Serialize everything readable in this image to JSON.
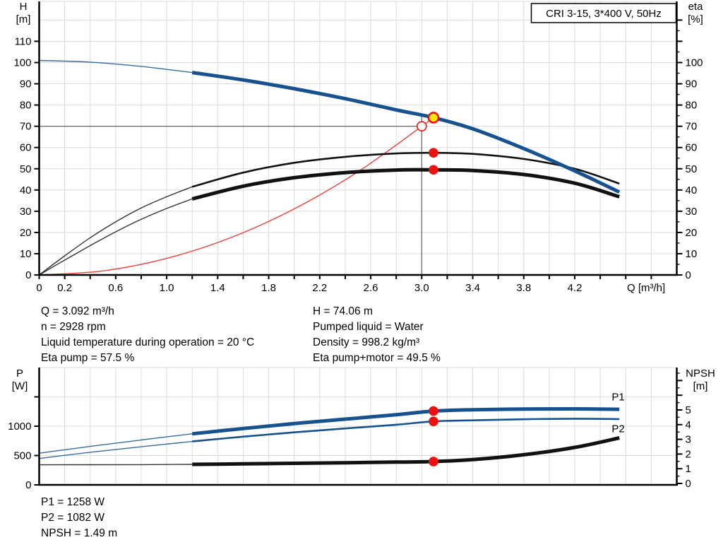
{
  "title_box": "CRI 3-15, 3*400 V, 50Hz",
  "info": {
    "top_left": [
      "Q = 3.092 m³/h",
      "n = 2928 rpm",
      "Liquid temperature during operation = 20 °C",
      "Eta pump = 57.5 %"
    ],
    "top_right": [
      "H = 74.06 m",
      "Pumped liquid = Water",
      "Density = 998.2 kg/m³",
      "Eta pump+motor = 49.5 %"
    ],
    "bottom": [
      "P1 = 1258 W",
      "P2 = 1082 W",
      "NPSH = 1.49 m"
    ]
  },
  "colors": {
    "curve_blue": "#17518e",
    "curve_black": "#111111",
    "curve_red": "#e8423c",
    "marker_red": "#ee0f0f",
    "marker_yellow": "#ffe600",
    "grid": "#dcdcdc",
    "guide": "#666666",
    "axis": "#000000"
  },
  "chart_data": [
    {
      "name": "head-flow-chart",
      "type": "line",
      "title": "CRI 3-15, 3*400 V, 50Hz",
      "x_axis": {
        "label": "Q [m³/h]",
        "min": 0,
        "max": 5.0,
        "grid_step": 0.2,
        "tick_labels": [
          "0",
          "0.2",
          "0.6",
          "1.0",
          "1.4",
          "1.8",
          "2.2",
          "2.6",
          "3.0",
          "3.4",
          "3.8",
          "4.2"
        ]
      },
      "y_left": {
        "label_lines": [
          "H",
          "[m]"
        ],
        "min": 0,
        "max": 128,
        "grid_step": 10,
        "tick_labels": [
          "0",
          "10",
          "20",
          "30",
          "40",
          "50",
          "60",
          "70",
          "80",
          "90",
          "100",
          "110"
        ]
      },
      "y_right": {
        "label_lines": [
          "eta",
          "[%]"
        ],
        "min": 0,
        "max": 120,
        "major_step": 10,
        "minor_step": 5,
        "tick_labels": [
          "0",
          "10",
          "20",
          "30",
          "40",
          "50",
          "60",
          "70",
          "80",
          "90",
          "100"
        ],
        "unlabeled_ticks": [
          110,
          120
        ]
      },
      "series": [
        {
          "name": "system-curve",
          "axis": "left",
          "color": "curve_red",
          "weight": "thin",
          "points": [
            [
              0,
              0
            ],
            [
              0.5,
              1.9
            ],
            [
              1.0,
              7.8
            ],
            [
              1.5,
              17.5
            ],
            [
              2.0,
              31.1
            ],
            [
              2.5,
              48.6
            ],
            [
              3.0,
              70.0
            ],
            [
              3.092,
              74.3
            ]
          ]
        },
        {
          "name": "eta-pump-curve",
          "axis": "right",
          "color": "curve_black",
          "weight": "medium",
          "thick_from": 1.2,
          "points": [
            [
              0,
              0
            ],
            [
              0.2,
              9
            ],
            [
              0.4,
              17.5
            ],
            [
              0.6,
              25
            ],
            [
              0.8,
              31.5
            ],
            [
              1.0,
              36.8
            ],
            [
              1.2,
              41.5
            ],
            [
              1.6,
              48.2
            ],
            [
              2.0,
              52.8
            ],
            [
              2.4,
              55.6
            ],
            [
              2.8,
              57.2
            ],
            [
              3.092,
              57.5
            ],
            [
              3.4,
              57.0
            ],
            [
              3.8,
              54.6
            ],
            [
              4.2,
              50.0
            ],
            [
              4.55,
              43.0
            ]
          ]
        },
        {
          "name": "eta-pump-motor-curve",
          "axis": "right",
          "color": "curve_black",
          "weight": "thick",
          "thick_from": 1.2,
          "points": [
            [
              0,
              0
            ],
            [
              0.2,
              7
            ],
            [
              0.4,
              13.8
            ],
            [
              0.6,
              20.3
            ],
            [
              0.8,
              26.2
            ],
            [
              1.0,
              31.3
            ],
            [
              1.2,
              35.8
            ],
            [
              1.6,
              41.8
            ],
            [
              2.0,
              45.8
            ],
            [
              2.4,
              48.2
            ],
            [
              2.8,
              49.4
            ],
            [
              3.092,
              49.5
            ],
            [
              3.4,
              49.2
            ],
            [
              3.8,
              47.3
            ],
            [
              4.2,
              43.2
            ],
            [
              4.55,
              36.8
            ]
          ]
        },
        {
          "name": "pump-curve",
          "axis": "left",
          "color": "curve_blue",
          "weight": "thick",
          "thick_from": 1.2,
          "points": [
            [
              0,
              101
            ],
            [
              0.4,
              100.2
            ],
            [
              0.8,
              98.2
            ],
            [
              1.2,
              95.3
            ],
            [
              1.6,
              91.8
            ],
            [
              2.0,
              87.7
            ],
            [
              2.4,
              83.0
            ],
            [
              2.8,
              77.7
            ],
            [
              3.092,
              74.06
            ],
            [
              3.4,
              68.8
            ],
            [
              3.8,
              59.5
            ],
            [
              4.2,
              49.0
            ],
            [
              4.55,
              39.0
            ]
          ]
        }
      ],
      "guides": [
        {
          "type": "h",
          "axis": "left",
          "value": 70,
          "q1": 0,
          "q2": 3.0
        },
        {
          "type": "v",
          "axis": "left",
          "q": 3.0,
          "v1": 0,
          "v2": 75.5
        }
      ],
      "markers": [
        {
          "name": "requested-duty-point",
          "q": 3.0,
          "value": 70,
          "axis": "left",
          "style": "open"
        },
        {
          "name": "duty-point",
          "q": 3.092,
          "value": 74.06,
          "axis": "left",
          "style": "yellow"
        },
        {
          "name": "eta-pump-point",
          "q": 3.092,
          "value": 57.5,
          "axis": "right",
          "style": "dot"
        },
        {
          "name": "eta-pump-motor-point",
          "q": 3.092,
          "value": 49.5,
          "axis": "right",
          "style": "dot"
        }
      ]
    },
    {
      "name": "power-npsh-chart",
      "type": "line",
      "x_axis": {
        "label": "",
        "min": 0,
        "max": 5.0,
        "grid_step": 0.2,
        "tick_labels": []
      },
      "y_left": {
        "label_lines": [
          "P",
          "[W]"
        ],
        "min": 0,
        "max": 2000,
        "grid_step": 500,
        "tick_labels": [
          "0",
          "500",
          "1000"
        ],
        "unlabeled_ticks": [
          1500
        ]
      },
      "y_right": {
        "label_lines": [
          "NPSH",
          "[m]"
        ],
        "min": 0,
        "max": 7.5,
        "major_step": 1,
        "minor_step": 0.5,
        "tick_labels": [
          "0",
          "1",
          "2",
          "3",
          "4",
          "5"
        ],
        "unlabeled_ticks": [
          6,
          7
        ]
      },
      "series": [
        {
          "name": "npsh-curve",
          "axis": "right",
          "color": "curve_black",
          "weight": "thick",
          "thick_from": 1.2,
          "points": [
            [
              0,
              1.27
            ],
            [
              0.8,
              1.28
            ],
            [
              1.2,
              1.3
            ],
            [
              1.6,
              1.33
            ],
            [
              2.0,
              1.37
            ],
            [
              2.4,
              1.41
            ],
            [
              2.8,
              1.45
            ],
            [
              3.092,
              1.49
            ],
            [
              3.4,
              1.62
            ],
            [
              3.8,
              1.95
            ],
            [
              4.2,
              2.45
            ],
            [
              4.55,
              3.1
            ]
          ]
        },
        {
          "name": "p2-curve",
          "axis": "left",
          "color": "curve_blue",
          "weight": "medium",
          "thick_from": 1.2,
          "points": [
            [
              0,
              450
            ],
            [
              0.4,
              555
            ],
            [
              0.8,
              650
            ],
            [
              1.2,
              740
            ],
            [
              1.6,
              822
            ],
            [
              2.0,
              895
            ],
            [
              2.4,
              962
            ],
            [
              2.8,
              1025
            ],
            [
              3.092,
              1082
            ],
            [
              3.4,
              1100
            ],
            [
              3.8,
              1118
            ],
            [
              4.2,
              1128
            ],
            [
              4.55,
              1122
            ]
          ]
        },
        {
          "name": "p1-curve",
          "axis": "left",
          "color": "curve_blue",
          "weight": "thick",
          "thick_from": 1.2,
          "points": [
            [
              0,
              540
            ],
            [
              0.4,
              655
            ],
            [
              0.8,
              765
            ],
            [
              1.2,
              870
            ],
            [
              1.6,
              960
            ],
            [
              2.0,
              1045
            ],
            [
              2.4,
              1120
            ],
            [
              2.8,
              1195
            ],
            [
              3.092,
              1258
            ],
            [
              3.4,
              1280
            ],
            [
              3.8,
              1292
            ],
            [
              4.2,
              1295
            ],
            [
              4.55,
              1288
            ]
          ]
        }
      ],
      "series_labels": [
        {
          "text": "P1",
          "q": 4.49,
          "value": 1440,
          "axis": "left"
        },
        {
          "text": "P2",
          "q": 4.49,
          "value": 900,
          "axis": "left"
        }
      ],
      "markers": [
        {
          "name": "p1-point",
          "q": 3.092,
          "value": 1258,
          "axis": "left",
          "style": "dot"
        },
        {
          "name": "p2-point",
          "q": 3.092,
          "value": 1082,
          "axis": "left",
          "style": "dot"
        },
        {
          "name": "npsh-point",
          "q": 3.092,
          "value": 1.49,
          "axis": "right",
          "style": "dot"
        }
      ]
    }
  ]
}
